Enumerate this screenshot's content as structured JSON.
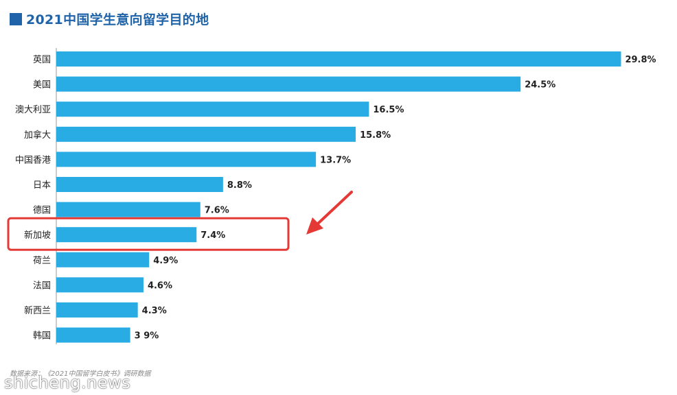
{
  "chart_data": {
    "type": "bar",
    "orientation": "horizontal",
    "title": "2021中国学生意向留学目的地",
    "categories": [
      "英国",
      "美国",
      "澳大利亚",
      "加拿大",
      "中国香港",
      "日本",
      "德国",
      "新加坡",
      "荷兰",
      "法国",
      "新西兰",
      "韩国"
    ],
    "values": [
      29.8,
      24.5,
      16.5,
      15.8,
      13.7,
      8.8,
      7.6,
      7.4,
      4.9,
      4.6,
      4.3,
      3.9
    ],
    "value_labels": [
      "29.8%",
      "24.5%",
      "16.5%",
      "15.8%",
      "13.7%",
      "8.8%",
      "7.6%",
      "7.4%",
      "4.9%",
      "4.6%",
      "4.3%",
      "3 9%"
    ],
    "unit": "%",
    "xlim": [
      0,
      30
    ],
    "grid": false,
    "highlight_category": "新加坡",
    "colors": {
      "bar": "#29ace3",
      "highlight_box": "#e53935",
      "arrow": "#e53935",
      "title": "#1f63a8"
    }
  },
  "source_note": "数据来源：《2021中国留学白皮书》调研数据",
  "watermark": "shicheng.news"
}
